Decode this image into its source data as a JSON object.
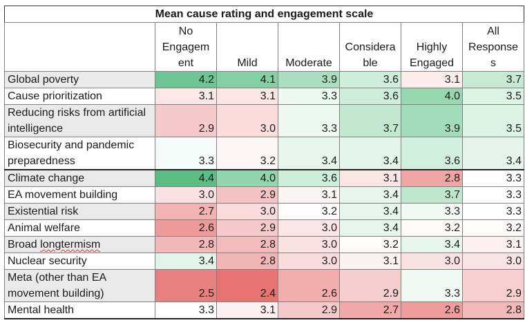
{
  "title": "Mean cause rating and engagement scale",
  "columns": [
    "No Engagement",
    "Mild",
    "Moderate",
    "Considerable",
    "Highly Engaged",
    "All Responses"
  ],
  "column_lines": [
    [
      "No",
      "Engagem",
      "ent"
    ],
    [
      "Mild"
    ],
    [
      "Moderate"
    ],
    [
      "Considera",
      "ble"
    ],
    [
      "Highly",
      "Engaged"
    ],
    [
      "All",
      "Response",
      "s"
    ]
  ],
  "rows": [
    {
      "label": "Global poverty",
      "values": [
        "4.2",
        "4.1",
        "3.9",
        "3.6",
        "3.1",
        "3.7"
      ],
      "colors": [
        "#6cc592",
        "#84cfa3",
        "#a9dfc0",
        "#cdeedb",
        "#fcecec",
        "#c6ead4"
      ]
    },
    {
      "label": "Cause prioritization",
      "values": [
        "3.1",
        "3.1",
        "3.3",
        "3.6",
        "4.0",
        "3.5"
      ],
      "colors": [
        "#fbe7e7",
        "#fbe6e6",
        "#eff9f3",
        "#cbedd9",
        "#96d7b0",
        "#ddf3e6"
      ]
    },
    {
      "label": "Reducing risks from artificial intelligence",
      "values": [
        "2.9",
        "3.0",
        "3.3",
        "3.7",
        "3.9",
        "3.5"
      ],
      "colors": [
        "#f6caca",
        "#fadede",
        "#edf8f1",
        "#c2e8d1",
        "#a4ddbb",
        "#dcf2e5"
      ]
    },
    {
      "label": "Biosecurity and pandemic preparedness",
      "values": [
        "3.3",
        "3.2",
        "3.4",
        "3.4",
        "3.6",
        "3.4"
      ],
      "colors": [
        "#f5fbf8",
        "#fdf6f6",
        "#e6f6ec",
        "#e3f4ea",
        "#d2efdd",
        "#e5f5eb"
      ]
    },
    {
      "label": "Climate change",
      "values": [
        "4.4",
        "4.0",
        "3.6",
        "3.1",
        "2.8",
        "3.3"
      ],
      "colors": [
        "#5bbd84",
        "#92d5ad",
        "#cdeedb",
        "#fbe5e5",
        "#f0a6a6",
        "#ffffff"
      ]
    },
    {
      "label": "EA movement building",
      "values": [
        "3.0",
        "2.9",
        "3.1",
        "3.4",
        "3.7",
        "3.3"
      ],
      "colors": [
        "#fbe2e2",
        "#f4c2c2",
        "#fdf4f4",
        "#e7f6ed",
        "#bfe7cf",
        "#ffffff"
      ]
    },
    {
      "label": "Existential risk",
      "values": [
        "2.7",
        "3.0",
        "3.2",
        "3.4",
        "3.3",
        "3.3"
      ],
      "colors": [
        "#f2b3b3",
        "#fadcdc",
        "#fffdfd",
        "#e6f6ec",
        "#f1faf5",
        "#ffffff"
      ]
    },
    {
      "label": "Animal welfare",
      "values": [
        "2.6",
        "2.9",
        "3.0",
        "3.4",
        "3.2",
        "3.2"
      ],
      "colors": [
        "#ee9a9a",
        "#f6caca",
        "#fbe5e5",
        "#e6f6ec",
        "#fefafa",
        "#fefbfb"
      ]
    },
    {
      "label": "Broad longtermism",
      "values": [
        "2.8",
        "2.8",
        "3.0",
        "3.2",
        "3.4",
        "3.1"
      ],
      "colors": [
        "#f3b8b8",
        "#f3bbbb",
        "#fbe2e2",
        "#fefbfb",
        "#e6f6ec",
        "#fdf0f0"
      ]
    },
    {
      "label": "Nuclear security",
      "values": [
        "3.4",
        "2.8",
        "3.0",
        "3.1",
        "3.0",
        "3.0"
      ],
      "colors": [
        "#e2f4e9",
        "#f2b5b5",
        "#fadcdc",
        "#fdf2f2",
        "#fbe2e2",
        "#fbe3e3"
      ]
    },
    {
      "label": "Meta (other than EA movement building)",
      "values": [
        "2.5",
        "2.4",
        "2.6",
        "2.9",
        "3.3",
        "2.9"
      ],
      "colors": [
        "#e98080",
        "#e77373",
        "#f2aeae",
        "#f7cece",
        "#f1f9f4",
        "#f7cfcf"
      ]
    },
    {
      "label": "Mental health",
      "values": [
        "3.3",
        "3.1",
        "2.9",
        "2.7",
        "2.6",
        "2.8"
      ],
      "colors": [
        "#ffffff",
        "#fdf0f0",
        "#f6caca",
        "#f0a8a8",
        "#ee9c9c",
        "#f3baba"
      ]
    }
  ],
  "label_colors": [
    "#eaeaea",
    "#ffffff"
  ]
}
